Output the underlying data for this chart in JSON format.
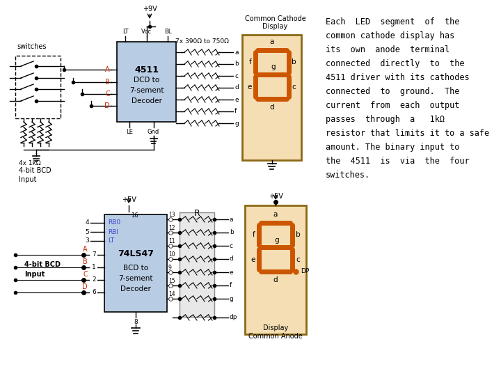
{
  "bg_color": "#ffffff",
  "chip_color": "#b8cce4",
  "display_bg": "#f5deb3",
  "display_border": "#8B6914",
  "segment_color": "#cc5500",
  "resistor_box_color": "#d3d3d3",
  "text_color": "#000000",
  "red_text_color": "#cc2200",
  "blue_text_color": "#4444cc",
  "figsize": [
    7.2,
    5.4
  ],
  "dpi": 100,
  "desc_lines": [
    "Each  LED  segment  of  the",
    "common cathode display has",
    "its  own  anode  terminal",
    "connected  directly  to  the",
    "4511 driver with its cathodes",
    "connected  to  ground.  The",
    "current  from  each  output",
    "passes  through  a   1kΩ",
    "resistor that limits it to a safe",
    "amount. The binary input to",
    "the  4511  is  via  the  four",
    "switches."
  ]
}
